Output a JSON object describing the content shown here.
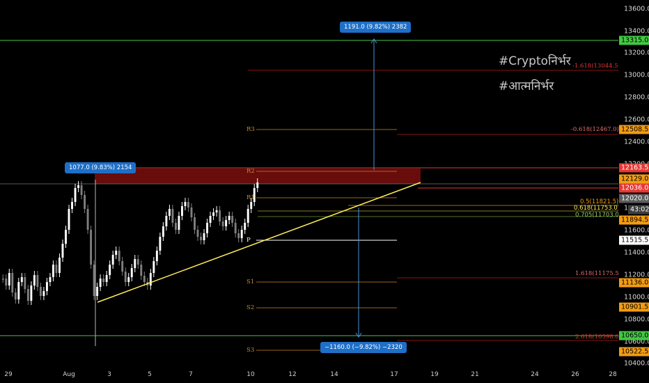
{
  "price_axis": {
    "ticks": [
      "13600.0",
      "13400.0",
      "13200.0",
      "13000.0",
      "12800.0",
      "12600.0",
      "12400.0",
      "12200.0",
      "12000.0",
      "11800.0",
      "11600.0",
      "11400.0",
      "11200.0",
      "11000.0",
      "10800.0",
      "10600.0",
      "10400.0"
    ],
    "tags": [
      {
        "text": "13315.0",
        "bg": "#43c843",
        "fg": "#000000"
      },
      {
        "text": "12508.5",
        "bg": "#f39c12",
        "fg": "#000000"
      },
      {
        "text": "12163.5",
        "bg": "#e53935",
        "fg": "#ffffff"
      },
      {
        "text": "12129.0",
        "bg": "#f39c12",
        "fg": "#000000"
      },
      {
        "text": "12036.0",
        "bg": "#e53935",
        "fg": "#ffffff"
      },
      {
        "text": "12020.0",
        "bg": "#5c5c5c",
        "fg": "#ffffff"
      },
      {
        "text": "43:02",
        "bg": "#3d3d3d",
        "fg": "#ffffff"
      },
      {
        "text": "11894.5",
        "bg": "#f39c12",
        "fg": "#000000"
      },
      {
        "text": "11515.5",
        "bg": "#ffffff",
        "fg": "#000000"
      },
      {
        "text": "11136.0",
        "bg": "#f39c12",
        "fg": "#000000"
      },
      {
        "text": "10901.5",
        "bg": "#f39c12",
        "fg": "#000000"
      },
      {
        "text": "10650.0",
        "bg": "#43c843",
        "fg": "#000000"
      },
      {
        "text": "10522.5",
        "bg": "#f39c12",
        "fg": "#000000"
      }
    ]
  },
  "date_axis": [
    "29",
    "Aug",
    "3",
    "5",
    "7",
    "10",
    "12",
    "14",
    "17",
    "19",
    "21",
    "24",
    "26",
    "28"
  ],
  "pivot_labels": [
    "R3",
    "R2",
    "R1",
    "P",
    "S1",
    "S2",
    "S3"
  ],
  "fib_labels": [
    {
      "text": "-1.618(13044.5)",
      "color": "#e53935"
    },
    {
      "text": "-0.618(12467.0)",
      "color": "#e57373"
    },
    {
      "text": "0.5(11821.5)",
      "color": "#f39c12"
    },
    {
      "text": "0.618(11753.0)",
      "color": "#ffee58"
    },
    {
      "text": "0.705(11703.0)",
      "color": "#9ccc65"
    },
    {
      "text": "1.618(11175.5)",
      "color": "#e57373"
    },
    {
      "text": "2.618(10598.0)",
      "color": "#e53935"
    }
  ],
  "callouts": {
    "top": "1191.0 (9.82%) 2382",
    "left": "1077.0 (9.83%) 2154",
    "bottom": "−1160.0 (−9.82%) −2320"
  },
  "hashtags": [
    "#Cryptoनिर्भर",
    "#आत्मनिर्भर"
  ],
  "colors": {
    "bull": "#ffffff",
    "bear": "#7f7f7f",
    "trendline": "#ffee58",
    "zone": "#8b1010",
    "measure": "#4a90d9"
  }
}
